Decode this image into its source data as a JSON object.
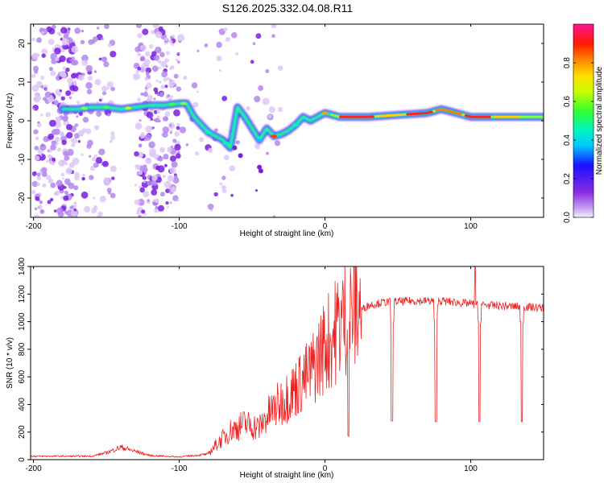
{
  "title": "S126.2025.332.04.08.R11",
  "colors": {
    "snr_line": "#ee2222",
    "axis": "#000000"
  },
  "chart_data": [
    {
      "type": "heatmap",
      "xlabel": "Height of straight line (km)",
      "ylabel": "Frequency (Hz)",
      "xlim": [
        -202,
        150
      ],
      "ylim": [
        -25,
        25
      ],
      "x_ticks": [
        -200,
        -100,
        0,
        100
      ],
      "x_tick_labels": [
        "-200",
        "-100",
        "0",
        "100"
      ],
      "y_ticks": [
        -20,
        -10,
        0,
        10,
        20
      ],
      "y_tick_labels": [
        "-20",
        "-10",
        "0",
        "10",
        "20"
      ],
      "colorbar": {
        "label": "Normalized spectral amplitude",
        "range": [
          0,
          1
        ],
        "ticks": [
          0,
          0.2,
          0.4,
          0.6,
          0.8
        ],
        "tick_labels": [
          "0.0",
          "0.2",
          "0.4",
          "0.6",
          "0.8"
        ]
      },
      "ridge": [
        [
          -180,
          3
        ],
        [
          -170,
          3
        ],
        [
          -160,
          3.5
        ],
        [
          -150,
          3.5
        ],
        [
          -140,
          3
        ],
        [
          -130,
          3.5
        ],
        [
          -120,
          4
        ],
        [
          -110,
          4
        ],
        [
          -100,
          4.5
        ],
        [
          -95,
          4.5
        ],
        [
          -90,
          1
        ],
        [
          -85,
          -1
        ],
        [
          -80,
          -3
        ],
        [
          -75,
          -4
        ],
        [
          -70,
          -5
        ],
        [
          -65,
          -7
        ],
        [
          -60,
          3.5
        ],
        [
          -55,
          1
        ],
        [
          -50,
          -2
        ],
        [
          -45,
          -5
        ],
        [
          -40,
          -2
        ],
        [
          -35,
          -4
        ],
        [
          -30,
          -3.5
        ],
        [
          -25,
          -2.5
        ],
        [
          -20,
          -1
        ],
        [
          -15,
          1
        ],
        [
          -10,
          0
        ],
        [
          -5,
          1
        ],
        [
          0,
          2
        ],
        [
          10,
          1
        ],
        [
          30,
          1
        ],
        [
          50,
          1.5
        ],
        [
          70,
          2
        ],
        [
          80,
          3
        ],
        [
          90,
          2
        ],
        [
          100,
          1
        ],
        [
          120,
          1
        ],
        [
          150,
          1
        ]
      ]
    },
    {
      "type": "line",
      "xlabel": "Height of straight line (km)",
      "ylabel": "SNR (10 * v/v)",
      "xlim": [
        -202,
        150
      ],
      "ylim": [
        0,
        1400
      ],
      "x_ticks": [
        -200,
        -100,
        0,
        100
      ],
      "x_tick_labels": [
        "-200",
        "-100",
        "0",
        "100"
      ],
      "y_ticks": [
        0,
        200,
        400,
        600,
        800,
        1000,
        1200,
        1400
      ],
      "y_tick_labels": [
        "0",
        "200",
        "400",
        "600",
        "800",
        "1000",
        "1200",
        "1400"
      ],
      "envelope": [
        [
          -202,
          25
        ],
        [
          -160,
          25
        ],
        [
          -150,
          50
        ],
        [
          -140,
          90
        ],
        [
          -130,
          60
        ],
        [
          -120,
          30
        ],
        [
          -100,
          20
        ],
        [
          -80,
          40
        ],
        [
          -75,
          100
        ],
        [
          -65,
          200
        ],
        [
          -55,
          250
        ],
        [
          -45,
          220
        ],
        [
          -40,
          300
        ],
        [
          -30,
          400
        ],
        [
          -20,
          500
        ],
        [
          -10,
          600
        ],
        [
          0,
          800
        ],
        [
          5,
          850
        ],
        [
          10,
          950
        ],
        [
          20,
          1050
        ],
        [
          30,
          1120
        ],
        [
          40,
          1140
        ],
        [
          60,
          1150
        ],
        [
          80,
          1150
        ],
        [
          90,
          1140
        ],
        [
          100,
          1130
        ],
        [
          110,
          1120
        ],
        [
          150,
          1100
        ]
      ],
      "dips": [
        {
          "x": 16,
          "y": 170
        },
        {
          "x": 46,
          "y": 280
        },
        {
          "x": 76,
          "y": 275
        },
        {
          "x": 106,
          "y": 275
        },
        {
          "x": 135,
          "y": 275
        }
      ],
      "peak": {
        "x": 103,
        "y": 1400
      }
    }
  ]
}
